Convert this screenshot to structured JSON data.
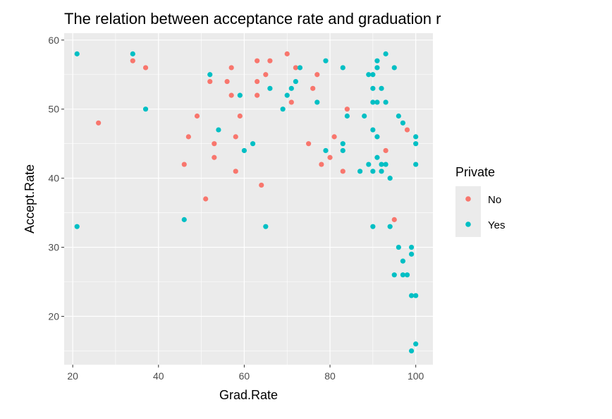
{
  "chart_data": {
    "type": "scatter",
    "title": "The relation between acceptance rate and graduation r",
    "xlabel": "Grad.Rate",
    "ylabel": "Accept.Rate",
    "xlim": [
      18,
      104
    ],
    "ylim": [
      13,
      61
    ],
    "x_ticks": [
      20,
      40,
      60,
      80,
      100
    ],
    "y_ticks": [
      20,
      30,
      40,
      50,
      60
    ],
    "grid": true,
    "background": "#ebebeb",
    "legend": {
      "title": "Private",
      "position": "right"
    },
    "series": [
      {
        "name": "No",
        "color": "#f8766d",
        "points": [
          [
            26,
            48
          ],
          [
            34,
            57
          ],
          [
            37,
            56
          ],
          [
            46,
            42
          ],
          [
            47,
            46
          ],
          [
            49,
            49
          ],
          [
            51,
            37
          ],
          [
            52,
            54
          ],
          [
            53,
            45
          ],
          [
            53,
            43
          ],
          [
            56,
            54
          ],
          [
            57,
            56
          ],
          [
            57,
            52
          ],
          [
            58,
            46
          ],
          [
            58,
            41
          ],
          [
            59,
            49
          ],
          [
            63,
            57
          ],
          [
            63,
            54
          ],
          [
            63,
            52
          ],
          [
            64,
            39
          ],
          [
            65,
            55
          ],
          [
            66,
            57
          ],
          [
            70,
            58
          ],
          [
            71,
            51
          ],
          [
            72,
            56
          ],
          [
            75,
            45
          ],
          [
            76,
            53
          ],
          [
            77,
            55
          ],
          [
            78,
            42
          ],
          [
            80,
            43
          ],
          [
            81,
            46
          ],
          [
            83,
            41
          ],
          [
            84,
            50
          ],
          [
            93,
            44
          ],
          [
            95,
            34
          ],
          [
            98,
            47
          ]
        ]
      },
      {
        "name": "Yes",
        "color": "#00bfc4",
        "points": [
          [
            21,
            58
          ],
          [
            21,
            33
          ],
          [
            34,
            58
          ],
          [
            37,
            50
          ],
          [
            46,
            34
          ],
          [
            52,
            55
          ],
          [
            54,
            47
          ],
          [
            59,
            52
          ],
          [
            60,
            44
          ],
          [
            62,
            45
          ],
          [
            65,
            33
          ],
          [
            66,
            53
          ],
          [
            69,
            50
          ],
          [
            70,
            52
          ],
          [
            71,
            53
          ],
          [
            72,
            54
          ],
          [
            73,
            56
          ],
          [
            77,
            51
          ],
          [
            79,
            57
          ],
          [
            79,
            44
          ],
          [
            83,
            56
          ],
          [
            83,
            45
          ],
          [
            83,
            44
          ],
          [
            84,
            49
          ],
          [
            87,
            41
          ],
          [
            88,
            49
          ],
          [
            89,
            55
          ],
          [
            89,
            42
          ],
          [
            90,
            55
          ],
          [
            90,
            53
          ],
          [
            90,
            51
          ],
          [
            90,
            47
          ],
          [
            90,
            41
          ],
          [
            90,
            33
          ],
          [
            91,
            57
          ],
          [
            91,
            56
          ],
          [
            91,
            51
          ],
          [
            91,
            46
          ],
          [
            91,
            43
          ],
          [
            92,
            53
          ],
          [
            92,
            42
          ],
          [
            92,
            41
          ],
          [
            93,
            58
          ],
          [
            93,
            51
          ],
          [
            93,
            42
          ],
          [
            94,
            40
          ],
          [
            94,
            33
          ],
          [
            95,
            56
          ],
          [
            95,
            26
          ],
          [
            96,
            49
          ],
          [
            96,
            30
          ],
          [
            97,
            48
          ],
          [
            97,
            28
          ],
          [
            97,
            26
          ],
          [
            98,
            26
          ],
          [
            99,
            30
          ],
          [
            99,
            29
          ],
          [
            99,
            23
          ],
          [
            99,
            15
          ],
          [
            100,
            46
          ],
          [
            100,
            45
          ],
          [
            100,
            42
          ],
          [
            100,
            23
          ],
          [
            100,
            16
          ]
        ]
      }
    ]
  }
}
